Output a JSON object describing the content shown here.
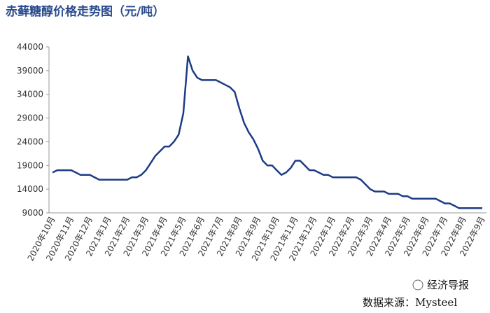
{
  "chart_data": {
    "type": "line",
    "title": "赤藓糖醇价格走势图（元/吨）",
    "categories": [
      "2020年10月",
      null,
      null,
      null,
      "2020年11月",
      null,
      null,
      null,
      "2020年12月",
      null,
      null,
      null,
      "2021年1月",
      null,
      null,
      null,
      "2021年2月",
      null,
      null,
      null,
      "2021年3月",
      null,
      null,
      null,
      "2021年4月",
      null,
      null,
      null,
      "2021年5月",
      null,
      null,
      null,
      "2021年6月",
      null,
      null,
      null,
      "2021年7月",
      null,
      null,
      null,
      "2021年8月",
      null,
      null,
      null,
      "2021年9月",
      null,
      null,
      null,
      "2021年10月",
      null,
      null,
      null,
      "2021年11月",
      null,
      null,
      null,
      "2021年12月",
      null,
      null,
      null,
      "2022年1月",
      null,
      null,
      null,
      "2022年2月",
      null,
      null,
      null,
      "2022年3月",
      null,
      null,
      null,
      "2022年4月",
      null,
      null,
      null,
      "2022年5月",
      null,
      null,
      null,
      "2022年6月",
      null,
      null,
      null,
      "2022年7月",
      null,
      null,
      null,
      "2022年8月",
      null,
      null,
      null,
      "2022年9月"
    ],
    "series": [
      {
        "name": "赤藓糖醇价格",
        "color": "#1d3c85",
        "values": [
          17500,
          18000,
          18000,
          18000,
          18000,
          17500,
          17000,
          17000,
          17000,
          16500,
          16000,
          16000,
          16000,
          16000,
          16000,
          16000,
          16000,
          16500,
          16500,
          17000,
          18000,
          19500,
          21000,
          22000,
          23000,
          23000,
          24000,
          25500,
          30000,
          42000,
          39000,
          37500,
          37000,
          37000,
          37000,
          37000,
          36500,
          36000,
          35500,
          34500,
          31000,
          28000,
          26000,
          24500,
          22500,
          20000,
          19000,
          19000,
          18000,
          17000,
          17500,
          18500,
          20000,
          20000,
          19000,
          18000,
          18000,
          17500,
          17000,
          17000,
          16500,
          16500,
          16500,
          16500,
          16500,
          16500,
          16000,
          15000,
          14000,
          13500,
          13500,
          13500,
          13000,
          13000,
          13000,
          12500,
          12500,
          12000,
          12000,
          12000,
          12000,
          12000,
          12000,
          11500,
          11000,
          11000,
          10500,
          10000,
          10000,
          10000,
          10000,
          10000,
          10000
        ]
      }
    ],
    "ylim": [
      9000,
      44000
    ],
    "yticks": [
      9000,
      14000,
      19000,
      24000,
      29000,
      34000,
      39000,
      44000
    ],
    "badge": "经济导报",
    "source": "数据来源：Mysteel"
  }
}
